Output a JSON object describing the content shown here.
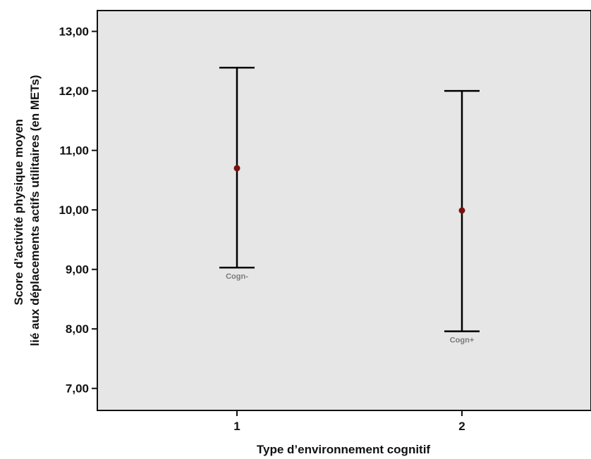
{
  "chart_data": {
    "type": "errorbar",
    "title": "",
    "xlabel": "Type d’environnement cognitif",
    "ylabel_lines": [
      "Score d’activité physique moyen",
      "lié aux déplacements actifs utilitaires (en METs)"
    ],
    "categories": [
      "1",
      "2"
    ],
    "series": [
      {
        "means": [
          10.7,
          9.99
        ],
        "lower": [
          9.03,
          7.96
        ],
        "upper": [
          12.39,
          12.0
        ],
        "annotations": [
          "Cogn-",
          "Cogn+"
        ]
      }
    ],
    "ylim": [
      6.63,
      13.35
    ],
    "yticks": [
      7,
      8,
      9,
      10,
      11,
      12,
      13
    ],
    "ytick_labels": [
      "7,00",
      "8,00",
      "9,00",
      "10,00",
      "11,00",
      "12,00",
      "13,00"
    ],
    "grid": false,
    "plot_background": "#e6e6e6",
    "point_color": "#7a1010",
    "bar_color": "#000000"
  }
}
